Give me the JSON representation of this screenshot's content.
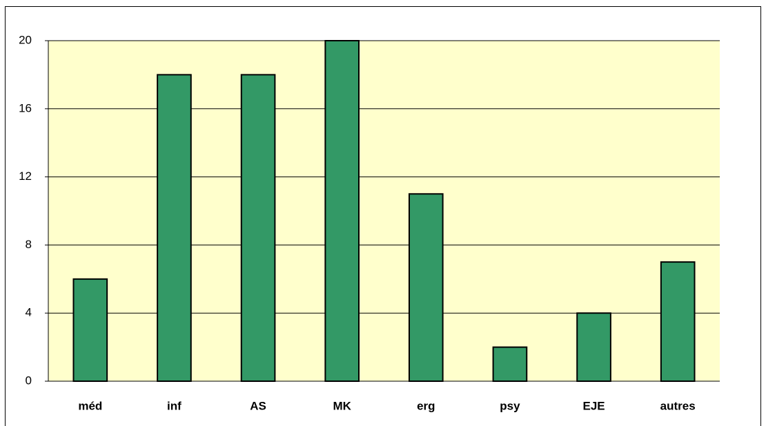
{
  "chart_data": {
    "type": "bar",
    "categories": [
      "méd",
      "inf",
      "AS",
      "MK",
      "erg",
      "psy",
      "EJE",
      "autres"
    ],
    "values": [
      6,
      18,
      18,
      20,
      11,
      2,
      4,
      7
    ],
    "color": "#339966",
    "ylim": [
      0,
      20
    ],
    "yticks": [
      0,
      4,
      8,
      12,
      16,
      20
    ],
    "grid": true
  }
}
